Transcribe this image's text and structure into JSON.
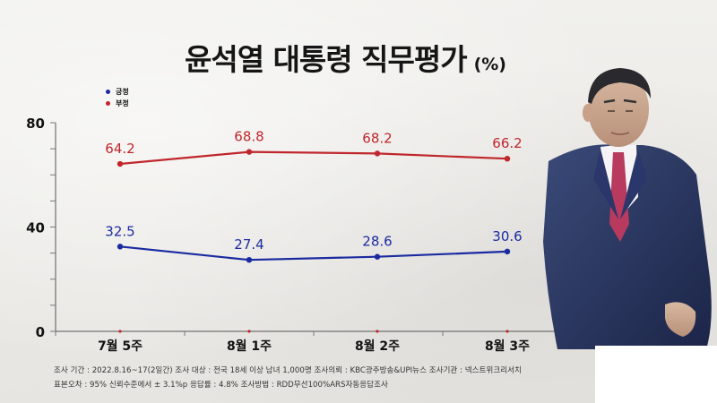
{
  "title": "윤석열 대통령 직무평가",
  "unit": "(%)",
  "legend": [
    {
      "name": "긍정",
      "color": "#1a2aa0"
    },
    {
      "name": "부정",
      "color": "#c0262c"
    }
  ],
  "chart_data": {
    "type": "line",
    "categories": [
      "7월 5주",
      "8월 1주",
      "8월 2주",
      "8월 3주"
    ],
    "series": [
      {
        "name": "부정",
        "color": "#c0262c",
        "values": [
          64.2,
          68.8,
          68.2,
          66.2
        ]
      },
      {
        "name": "긍정",
        "color": "#1a2aa0",
        "values": [
          32.5,
          27.4,
          28.6,
          30.6
        ]
      }
    ],
    "yticks": [
      0,
      40,
      80
    ],
    "ylim": [
      0,
      80
    ],
    "value_labels": {
      "부정": [
        "64.2",
        "68.8",
        "68.2",
        "66.2"
      ],
      "긍정": [
        "32.5",
        "27.4",
        "28.6",
        "30.6"
      ]
    }
  },
  "footer": {
    "line1": "조사 기간 : 2022.8.16~17(2일간)   조사 대상 : 전국 18세 이상 남녀 1,000명   조사의뢰 : KBC광주방송&UPI뉴스   조사기관 : 넥스트위크리서치",
    "line2": "표본오차 : 95% 신뢰수준에서 ± 3.1%p   응답률 : 4.8%   조사방법 : RDD무선100%ARS자동응답조사"
  },
  "colors": {
    "positive": "#1a2aa0",
    "negative": "#c0262c",
    "background": "#ecebe8"
  },
  "photo": {
    "icon": "person-in-suit-photo"
  }
}
